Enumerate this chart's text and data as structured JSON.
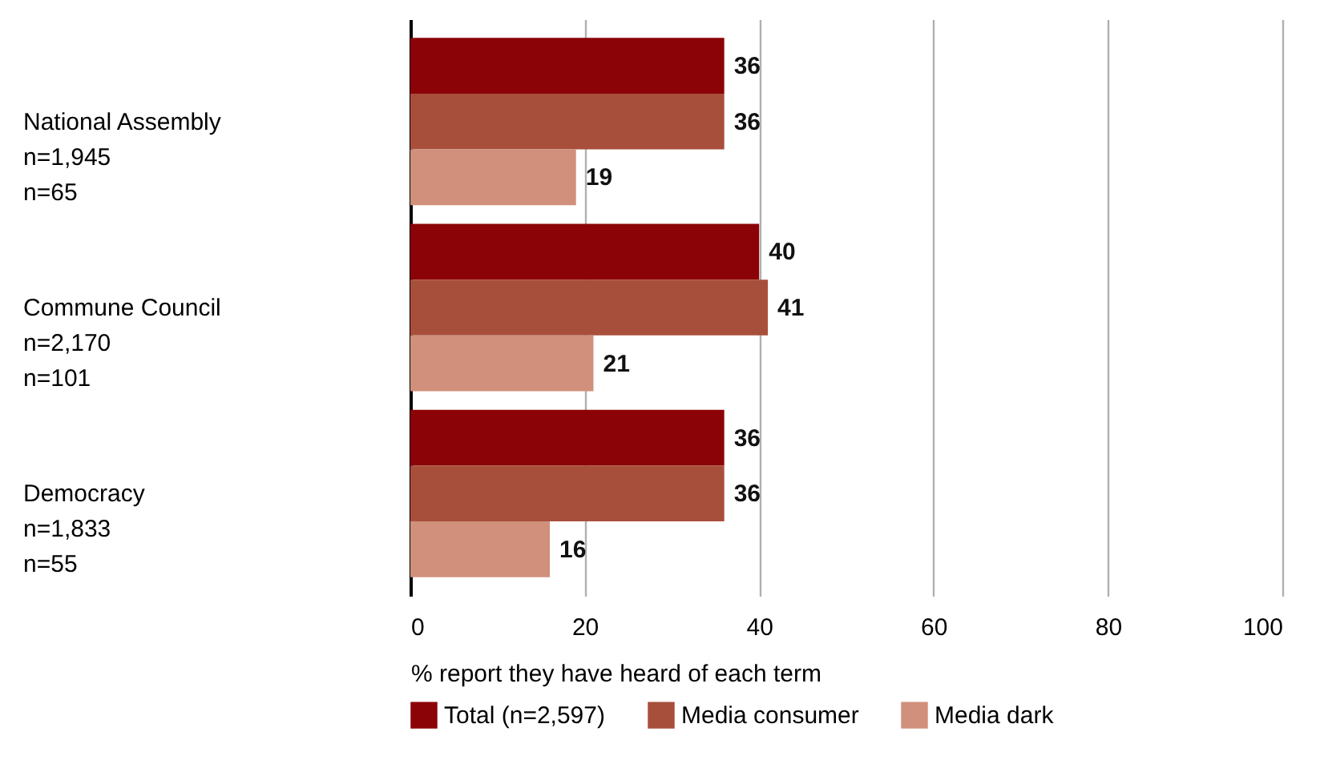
{
  "chart_data": {
    "type": "bar",
    "orientation": "horizontal",
    "categories": [
      "National Assembly\nn=1,945\nn=65",
      "Commune Council\nn=2,170\nn=101",
      "Democracy\nn=1,833\nn=55"
    ],
    "series": [
      {
        "name": "Total (n=2,597)",
        "color": "#8b0306",
        "values": [
          36,
          40,
          36
        ]
      },
      {
        "name": "Media consumer",
        "color": "#a84f3c",
        "values": [
          36,
          41,
          36
        ]
      },
      {
        "name": "Media dark",
        "color": "#d0907b",
        "values": [
          19,
          21,
          16
        ]
      }
    ],
    "xlabel": "% report they have heard of each term",
    "xlim": [
      0,
      100
    ],
    "xticks": [
      0,
      20,
      40,
      60,
      80,
      100
    ],
    "grid": "x",
    "legend": "bottom",
    "data_labels": true
  }
}
